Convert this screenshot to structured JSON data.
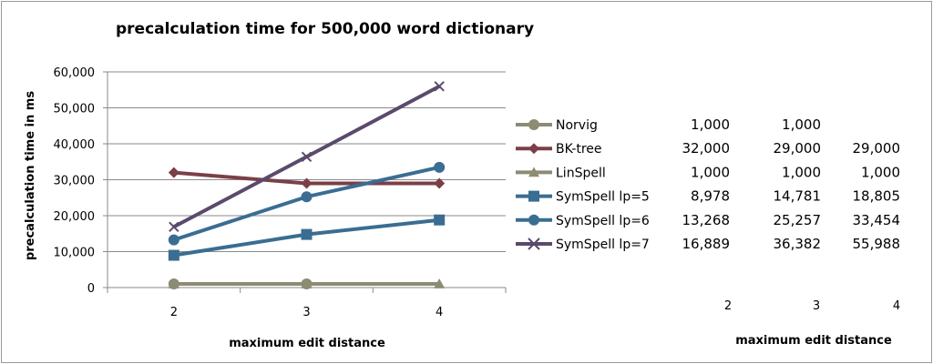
{
  "chart_data": {
    "type": "line",
    "title": "precalculation time  for 500,000 word dictionary",
    "xlabel": "maximum edit distance",
    "ylabel": "precalculation time in ms",
    "x": [
      2,
      3,
      4
    ],
    "x_tick_labels": [
      "2",
      "3",
      "4"
    ],
    "ylim": [
      0,
      60000
    ],
    "y_ticks": [
      0,
      10000,
      20000,
      30000,
      40000,
      50000,
      60000
    ],
    "y_tick_labels": [
      "0",
      "10,000",
      "20,000",
      "30,000",
      "40,000",
      "50,000",
      "60,000"
    ],
    "grid": "horizontal",
    "legend_position": "right",
    "series": [
      {
        "name": "Norvig",
        "values": [
          1000,
          1000,
          null
        ],
        "labels": [
          "1,000",
          "1,000",
          ""
        ],
        "color": "#8c8c74",
        "marker": "circle"
      },
      {
        "name": "BK-tree",
        "values": [
          32000,
          29000,
          29000
        ],
        "labels": [
          "32,000",
          "29,000",
          "29,000"
        ],
        "color": "#7b3f48",
        "marker": "diamond"
      },
      {
        "name": "LinSpell",
        "values": [
          1000,
          1000,
          1000
        ],
        "labels": [
          "1,000",
          "1,000",
          "1,000"
        ],
        "color": "#8c8c74",
        "marker": "triangle"
      },
      {
        "name": "SymSpell lp=5",
        "values": [
          8978,
          14781,
          18805
        ],
        "labels": [
          "8,978",
          "14,781",
          "18,805"
        ],
        "color": "#3a6d92",
        "marker": "square"
      },
      {
        "name": "SymSpell lp=6",
        "values": [
          13268,
          25257,
          33454
        ],
        "labels": [
          "13,268",
          "25,257",
          "33,454"
        ],
        "color": "#3a6d92",
        "marker": "circle"
      },
      {
        "name": "SymSpell lp=7",
        "values": [
          16889,
          36382,
          55988
        ],
        "labels": [
          "16,889",
          "36,382",
          "55,988"
        ],
        "color": "#5a4a6c",
        "marker": "x"
      }
    ],
    "data_table": {
      "column_labels": [
        "2",
        "3",
        "4"
      ],
      "xlabel": "maximum edit distance"
    }
  }
}
